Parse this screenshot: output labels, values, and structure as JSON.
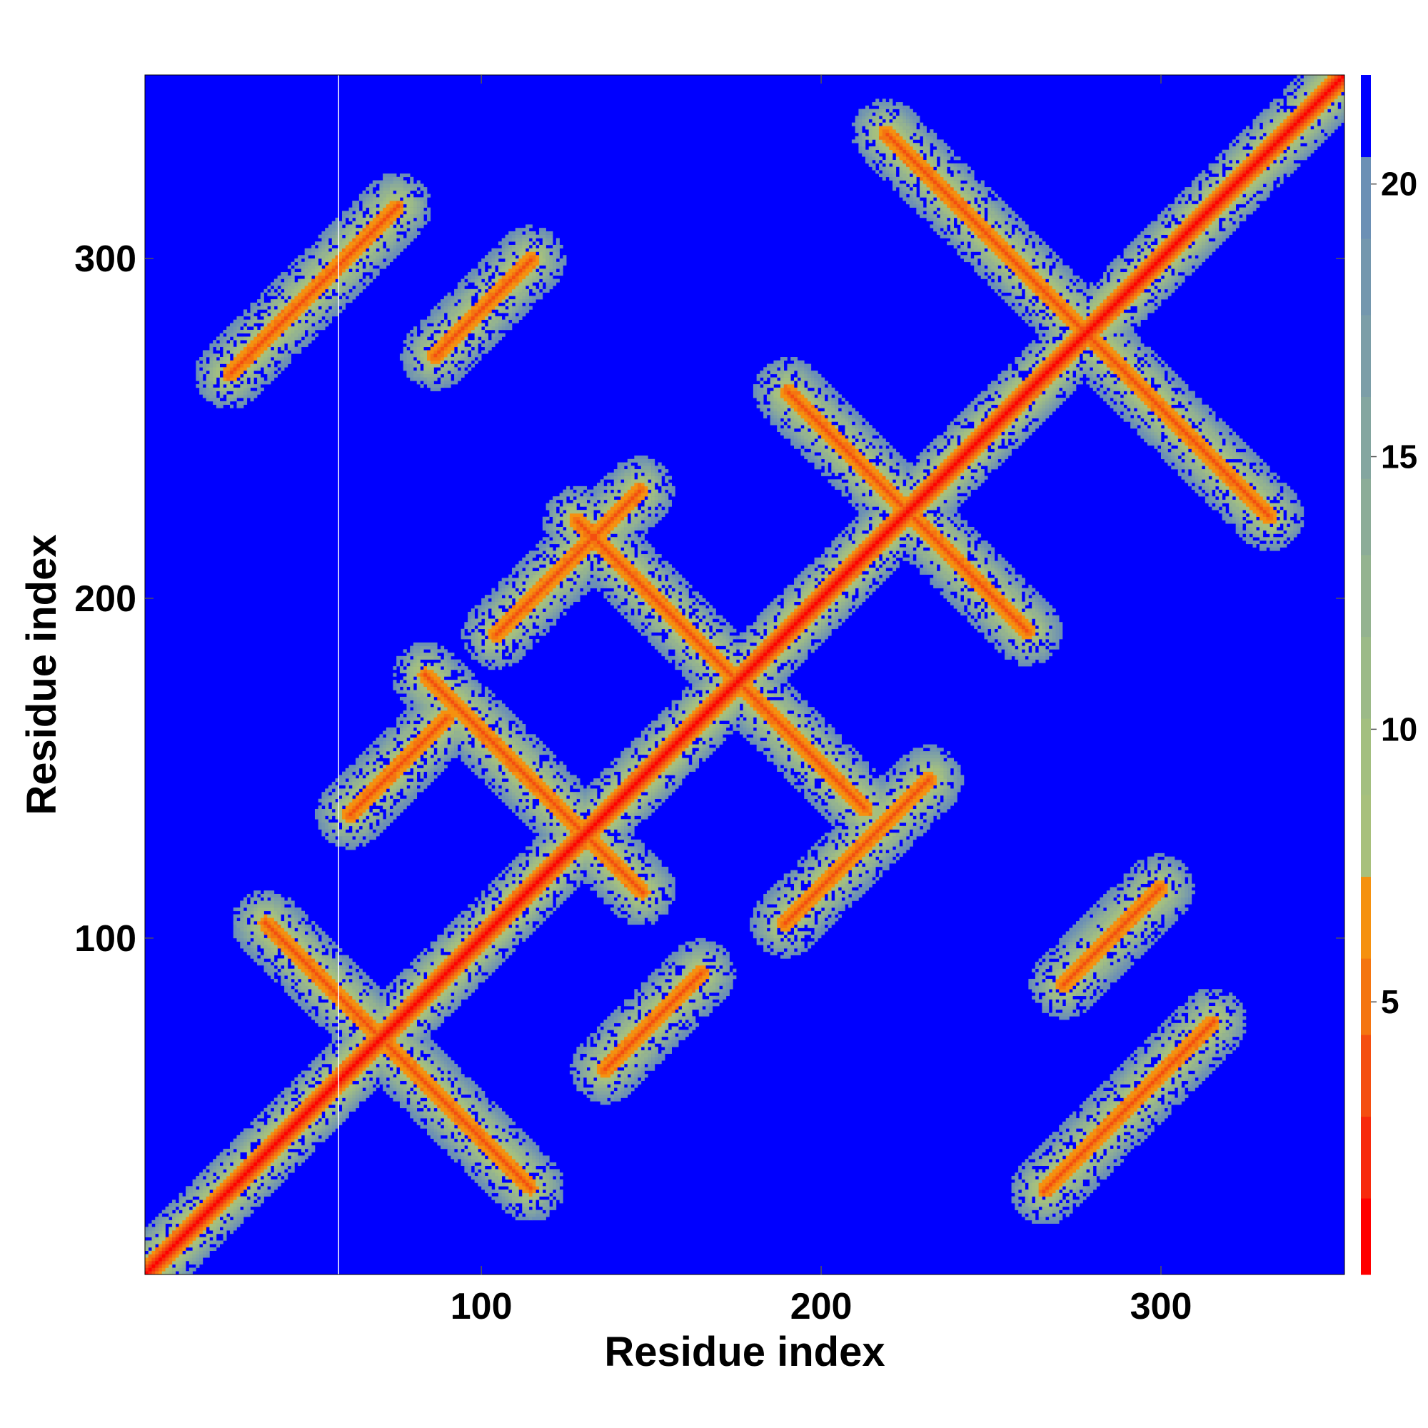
{
  "chart_data": {
    "type": "heatmap",
    "title": "",
    "xlabel": "Residue index",
    "ylabel": "Residue index",
    "xlim": [
      1,
      353
    ],
    "ylim": [
      1,
      353
    ],
    "x_ticks": [
      "100",
      "200",
      "300"
    ],
    "y_ticks": [
      "100",
      "200",
      "300"
    ],
    "x_tick_values": [
      100,
      200,
      300
    ],
    "y_tick_values": [
      100,
      200,
      300
    ],
    "colorbar": {
      "range": [
        0,
        22
      ],
      "tick_labels": [
        "5",
        "10",
        "15",
        "20"
      ],
      "tick_values": [
        5,
        10,
        15,
        20
      ],
      "bands": [
        {
          "from": 0,
          "to": 1.4,
          "color": "#ff0000"
        },
        {
          "from": 1.4,
          "to": 2.9,
          "color": "#f72a0c"
        },
        {
          "from": 2.9,
          "to": 4.4,
          "color": "#f44e10"
        },
        {
          "from": 4.4,
          "to": 5.8,
          "color": "#f47510"
        },
        {
          "from": 5.8,
          "to": 7.3,
          "color": "#f5910f"
        },
        {
          "from": 7.3,
          "to": 8.8,
          "color": "#a8c07c"
        },
        {
          "from": 8.8,
          "to": 10.2,
          "color": "#a3bf80"
        },
        {
          "from": 10.2,
          "to": 11.7,
          "color": "#9cba88"
        },
        {
          "from": 11.7,
          "to": 13.2,
          "color": "#94b390"
        },
        {
          "from": 13.2,
          "to": 14.6,
          "color": "#8cac98"
        },
        {
          "from": 14.6,
          "to": 16.1,
          "color": "#84a6a0"
        },
        {
          "from": 16.1,
          "to": 17.6,
          "color": "#7c9ea8"
        },
        {
          "from": 17.6,
          "to": 19.0,
          "color": "#7497ae"
        },
        {
          "from": 19.0,
          "to": 20.5,
          "color": "#6c90b5"
        },
        {
          "from": 20.5,
          "to": 22.0,
          "color": "#0000ff"
        }
      ]
    },
    "background_value": 22,
    "background_color": "#0000ff",
    "features": [
      {
        "kind": "main_diagonal",
        "from": 1,
        "to": 353
      },
      {
        "kind": "antiparallel",
        "center": [
          75,
          65
        ],
        "length": 110
      },
      {
        "kind": "antiparallel",
        "center": [
          170,
          180
        ],
        "length": 120
      },
      {
        "kind": "antiparallel",
        "center": [
          275,
          280
        ],
        "length": 160
      },
      {
        "kind": "antiparallel",
        "center": [
          115,
          145
        ],
        "length": 90
      },
      {
        "kind": "antiparallel",
        "center": [
          225,
          225
        ],
        "length": 100
      },
      {
        "kind": "parallel",
        "center": [
          50,
          290
        ],
        "length": 70
      },
      {
        "kind": "parallel",
        "center": [
          290,
          50
        ],
        "length": 70
      },
      {
        "kind": "parallel",
        "center": [
          125,
          210
        ],
        "length": 60
      },
      {
        "kind": "parallel",
        "center": [
          210,
          125
        ],
        "length": 60
      },
      {
        "kind": "parallel",
        "center": [
          75,
          150
        ],
        "length": 40
      },
      {
        "kind": "parallel",
        "center": [
          150,
          75
        ],
        "length": 40
      },
      {
        "kind": "parallel",
        "center": [
          285,
          100
        ],
        "length": 40
      },
      {
        "kind": "parallel",
        "center": [
          100,
          285
        ],
        "length": 40
      }
    ],
    "grid": false,
    "legend": "colorbar-right"
  }
}
